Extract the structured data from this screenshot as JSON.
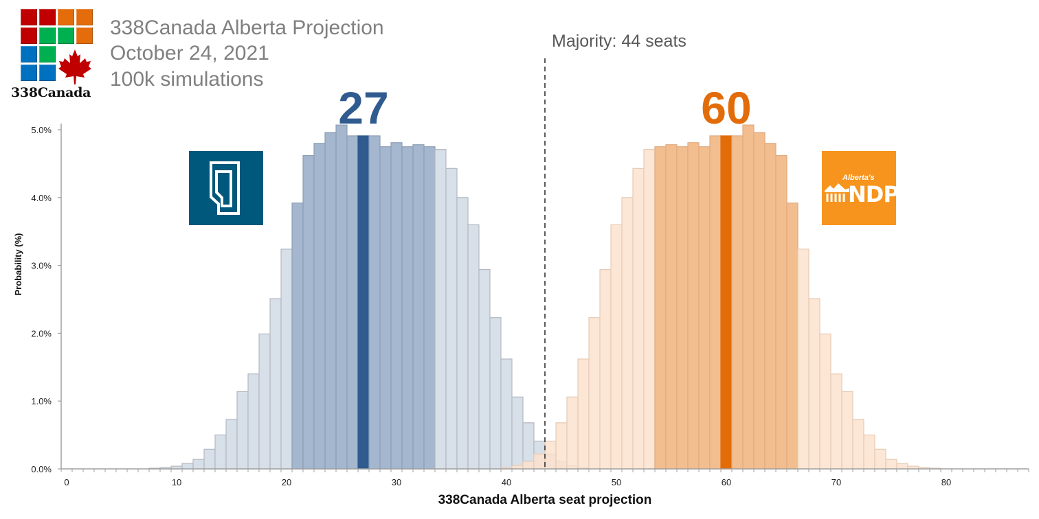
{
  "header": {
    "brand": "338Canada",
    "title_lines": [
      "338Canada Alberta Projection",
      "October 24, 2021",
      "100k simulations"
    ],
    "logo_grid_colors": [
      [
        "#C00000",
        "#C00000",
        "#E46C0A",
        "#E46C0A"
      ],
      [
        "#C00000",
        "#00B050",
        "#00B050",
        "#E46C0A"
      ],
      [
        "#0070C0",
        "#00B050",
        null,
        null
      ],
      [
        "#0070C0",
        "#0070C0",
        null,
        null
      ]
    ],
    "maple_leaf_color": "#C00000"
  },
  "annotations": {
    "majority_label": "Majority: 44 seats",
    "pc_projection": "27",
    "ndp_projection": "60"
  },
  "parties": {
    "pc": {
      "logo": "alberta-pc-logo",
      "logo_color": "#00587C"
    },
    "ndp": {
      "logo": "alberta-ndp-logo",
      "logo_color": "#F7941D",
      "logo_small_text": "Alberta's",
      "logo_big_text": "NDP"
    }
  },
  "chart_data": {
    "type": "bar",
    "title": "",
    "xlabel": "338Canada Alberta seat projection",
    "ylabel": "Probability (%)",
    "xlim": [
      -0.5,
      87.5
    ],
    "ylim": [
      0,
      5.0
    ],
    "x_ticks": [
      0,
      10,
      20,
      30,
      40,
      50,
      60,
      70,
      80
    ],
    "y_ticks": [
      0,
      1,
      2,
      3,
      4,
      5
    ],
    "y_tick_labels": [
      "0.0%",
      "1.0%",
      "2.0%",
      "3.0%",
      "4.0%",
      "5.0%"
    ],
    "majority_line": 43.5,
    "majority_seats": 44,
    "grid": false,
    "legend": "none",
    "series": [
      {
        "name": "UCP",
        "colors": {
          "tail": "#D7DFE9",
          "band": "#A4B7CF",
          "median": "#2F5B8F",
          "tail_border": "#B4B9C0",
          "band_border": "#8E9FB5"
        },
        "median": 27,
        "band": [
          21,
          33
        ],
        "seats": [
          8,
          9,
          10,
          11,
          12,
          13,
          14,
          15,
          16,
          17,
          18,
          19,
          20,
          21,
          22,
          23,
          24,
          25,
          26,
          27,
          28,
          29,
          30,
          31,
          32,
          33,
          34,
          35,
          36,
          37,
          38,
          39,
          40,
          41,
          42,
          43,
          44,
          45,
          46,
          47
        ],
        "values": [
          0.01,
          0.02,
          0.04,
          0.08,
          0.14,
          0.29,
          0.5,
          0.73,
          1.14,
          1.4,
          1.99,
          2.51,
          3.24,
          3.92,
          4.62,
          4.8,
          4.96,
          5.07,
          4.91,
          4.91,
          4.91,
          4.75,
          4.81,
          4.75,
          4.78,
          4.75,
          4.71,
          4.43,
          4.0,
          3.6,
          2.94,
          2.23,
          1.62,
          1.06,
          0.68,
          0.41,
          0.22,
          0.11,
          0.05,
          0.02
        ]
      },
      {
        "name": "NDP",
        "colors": {
          "tail": "#FBE2CE",
          "band": "#F3BE8F",
          "median": "#E36C0A",
          "tail_border": "#E6CBB6",
          "band_border": "#E0AA7E"
        },
        "median": 60,
        "band": [
          54,
          66
        ],
        "seats": [
          40,
          41,
          42,
          43,
          44,
          45,
          46,
          47,
          48,
          49,
          50,
          51,
          52,
          53,
          54,
          55,
          56,
          57,
          58,
          59,
          60,
          61,
          62,
          63,
          64,
          65,
          66,
          67,
          68,
          69,
          70,
          71,
          72,
          73,
          74,
          75,
          76,
          77,
          78,
          79
        ],
        "values": [
          0.02,
          0.05,
          0.11,
          0.22,
          0.41,
          0.68,
          1.06,
          1.62,
          2.23,
          2.94,
          3.6,
          4.0,
          4.43,
          4.71,
          4.75,
          4.78,
          4.75,
          4.81,
          4.75,
          4.91,
          4.91,
          4.91,
          5.07,
          4.96,
          4.8,
          4.62,
          3.92,
          3.24,
          2.51,
          1.99,
          1.4,
          1.14,
          0.73,
          0.5,
          0.29,
          0.14,
          0.08,
          0.04,
          0.02,
          0.01
        ]
      }
    ]
  }
}
